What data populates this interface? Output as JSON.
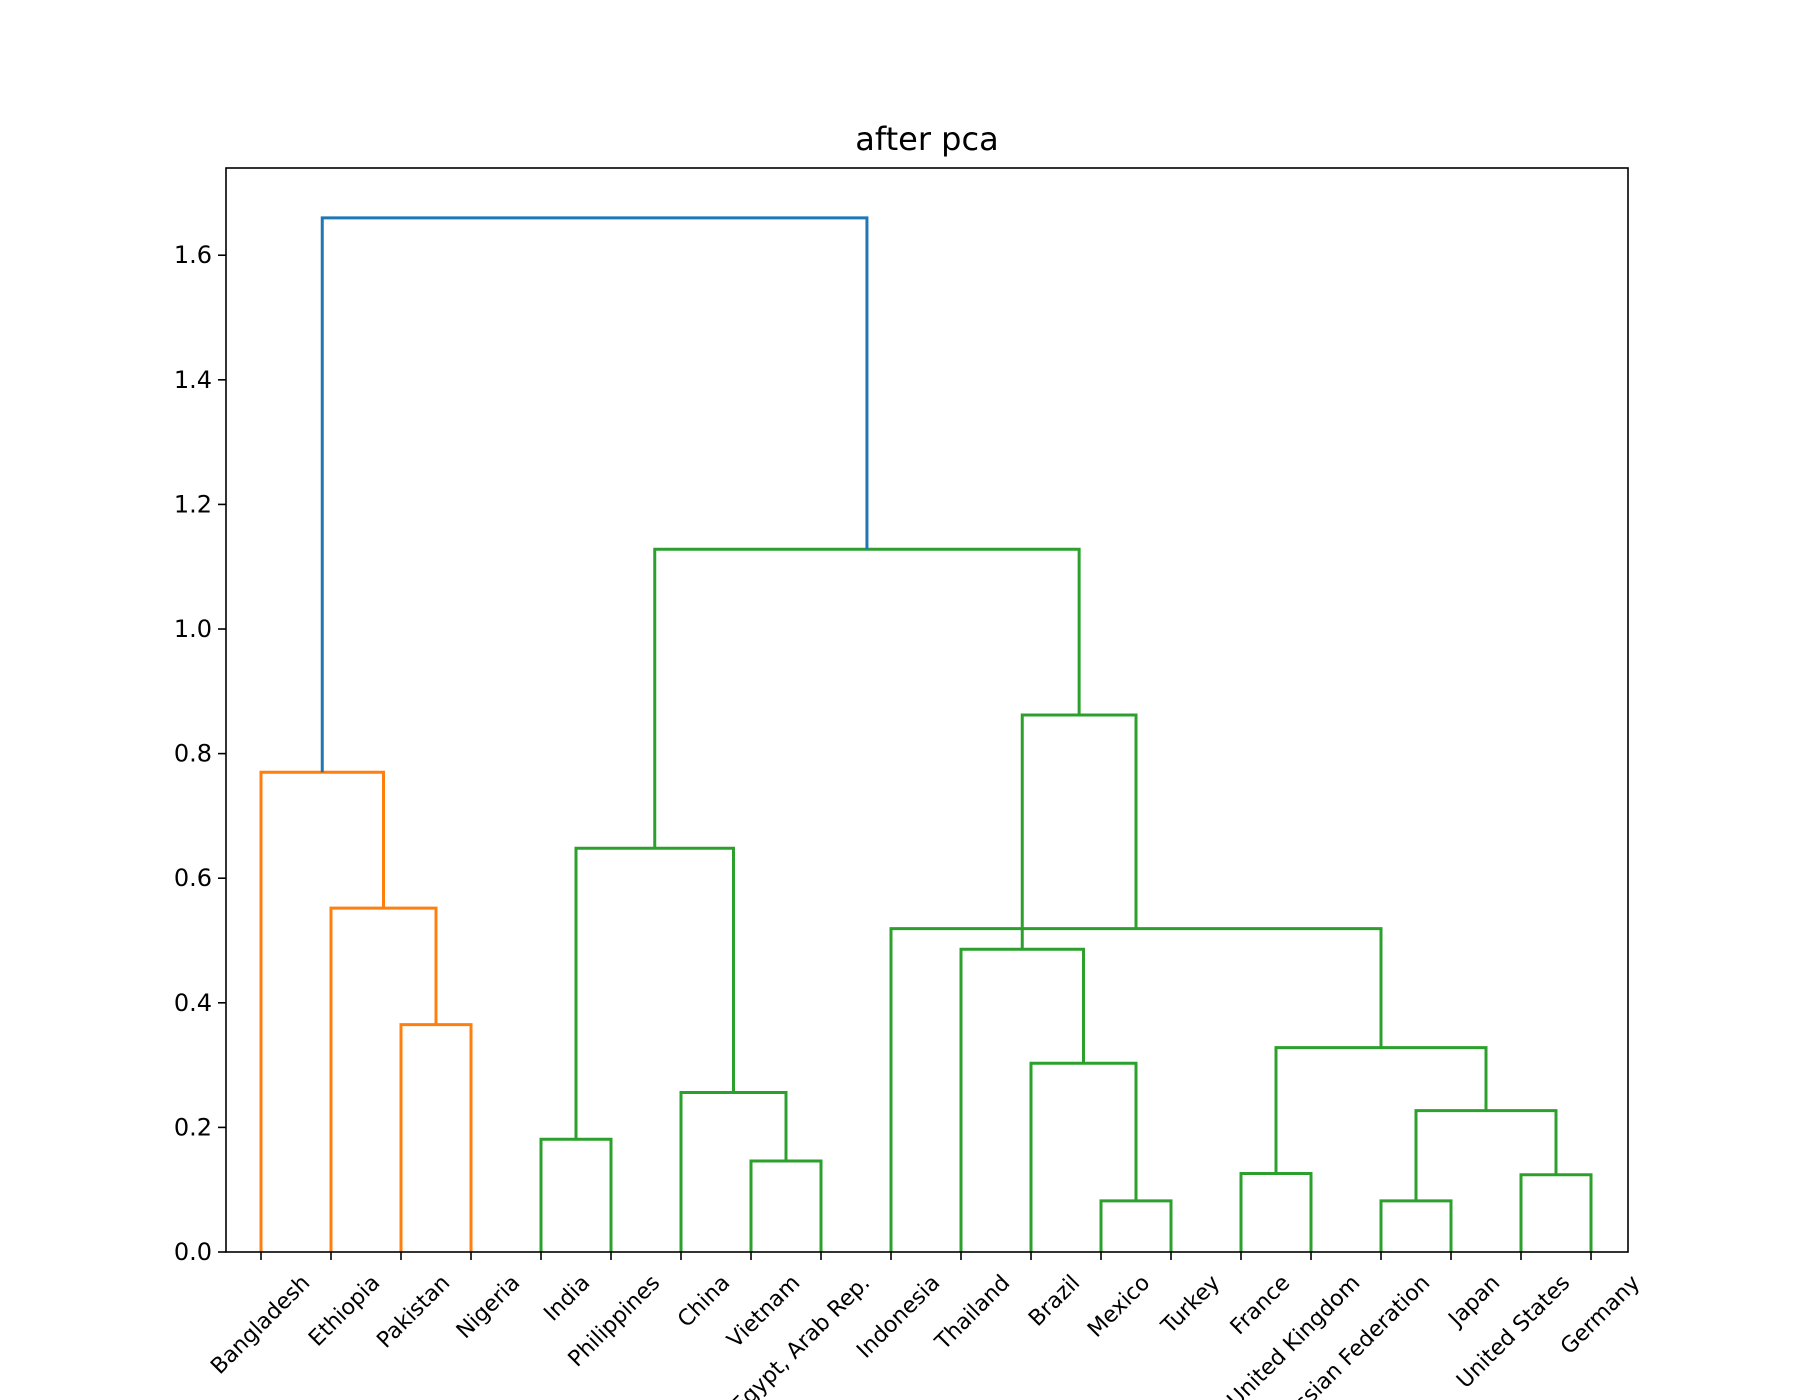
{
  "chart_data": {
    "type": "dendrogram",
    "title": "after pca",
    "xlabel": "",
    "ylabel": "",
    "ylim": [
      0,
      1.74
    ],
    "grid": false,
    "yticks": [
      "0.0",
      "0.2",
      "0.4",
      "0.6",
      "0.8",
      "1.0",
      "1.2",
      "1.4",
      "1.6"
    ],
    "colors": {
      "above_threshold": "#1f77b4",
      "cluster_1": "#ff7f0e",
      "cluster_2": "#2ca02c"
    },
    "leaves": [
      "Bangladesh",
      "Ethiopia",
      "Pakistan",
      "Nigeria",
      "India",
      "Philippines",
      "China",
      "Vietnam",
      "Egypt, Arab Rep.",
      "Indonesia",
      "Thailand",
      "Brazil",
      "Mexico",
      "Turkey",
      "France",
      "United Kingdom",
      "Russian Federation",
      "Japan",
      "United States",
      "Germany"
    ],
    "merges": [
      {
        "left": "Pakistan",
        "right": "Nigeria",
        "height": 0.365,
        "color": "cluster_1"
      },
      {
        "left": "Ethiopia",
        "right": "m0",
        "height": 0.552,
        "color": "cluster_1"
      },
      {
        "left": "Bangladesh",
        "right": "m1",
        "height": 0.77,
        "color": "cluster_1"
      },
      {
        "left": "India",
        "right": "Philippines",
        "height": 0.181,
        "color": "cluster_2"
      },
      {
        "left": "Vietnam",
        "right": "Egypt, Arab Rep.",
        "height": 0.146,
        "color": "cluster_2"
      },
      {
        "left": "China",
        "right": "m4",
        "height": 0.256,
        "color": "cluster_2"
      },
      {
        "left": "m3",
        "right": "m5",
        "height": 0.648,
        "color": "cluster_2"
      },
      {
        "left": "Mexico",
        "right": "Turkey",
        "height": 0.082,
        "color": "cluster_2"
      },
      {
        "left": "Brazil",
        "right": "m7",
        "height": 0.303,
        "color": "cluster_2"
      },
      {
        "left": "Thailand",
        "right": "m8",
        "height": 0.486,
        "color": "cluster_2"
      },
      {
        "left": "France",
        "right": "United Kingdom",
        "height": 0.126,
        "color": "cluster_2"
      },
      {
        "left": "Russian Federation",
        "right": "Japan",
        "height": 0.082,
        "color": "cluster_2"
      },
      {
        "left": "United States",
        "right": "Germany",
        "height": 0.124,
        "color": "cluster_2"
      },
      {
        "left": "m11",
        "right": "m12",
        "height": 0.227,
        "color": "cluster_2"
      },
      {
        "left": "m10",
        "right": "m13",
        "height": 0.328,
        "color": "cluster_2"
      },
      {
        "left": "Indonesia",
        "right": "m14",
        "height": 0.519,
        "color": "cluster_2"
      },
      {
        "left": "m9",
        "right": "m15",
        "height": 0.862,
        "color": "cluster_2"
      },
      {
        "left": "m6",
        "right": "m16",
        "height": 1.128,
        "color": "cluster_2"
      },
      {
        "left": "m2",
        "right": "m17",
        "height": 1.66,
        "color": "above_threshold"
      }
    ]
  }
}
